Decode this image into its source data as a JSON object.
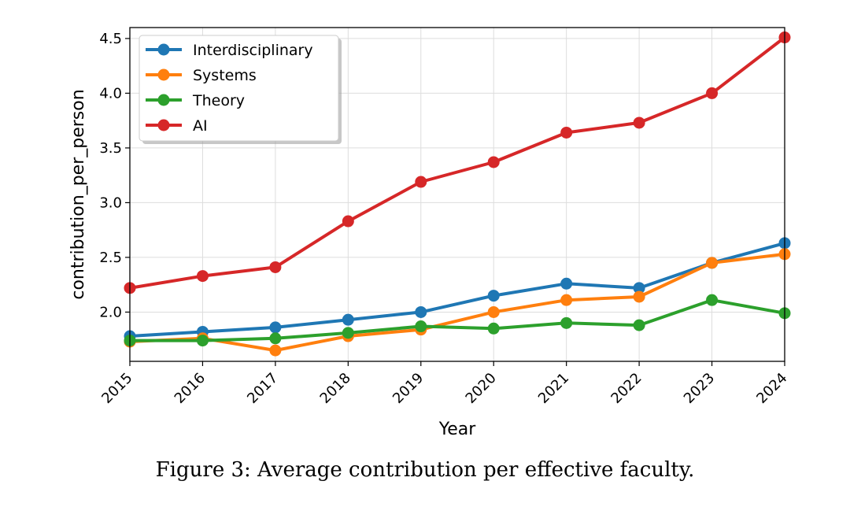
{
  "chart_data": {
    "type": "line",
    "title": "",
    "xlabel": "Year",
    "ylabel": "contribution_per_person",
    "x": [
      "2015",
      "2016",
      "2017",
      "2018",
      "2019",
      "2020",
      "2021",
      "2022",
      "2023",
      "2024"
    ],
    "yticks": [
      "2.0",
      "2.5",
      "3.0",
      "3.5",
      "4.0",
      "4.5"
    ],
    "ylim": [
      1.55,
      4.6
    ],
    "grid": true,
    "legend_position": "top-left",
    "series": [
      {
        "name": "Interdisciplinary",
        "color": "#1f77b4",
        "values": [
          1.78,
          1.82,
          1.86,
          1.93,
          2.0,
          2.15,
          2.26,
          2.22,
          2.45,
          2.63
        ]
      },
      {
        "name": "Systems",
        "color": "#ff7f0e",
        "values": [
          1.73,
          1.76,
          1.65,
          1.78,
          1.84,
          2.0,
          2.11,
          2.14,
          2.45,
          2.53
        ]
      },
      {
        "name": "Theory",
        "color": "#2ca02c",
        "values": [
          1.74,
          1.74,
          1.76,
          1.81,
          1.87,
          1.85,
          1.9,
          1.88,
          2.11,
          1.99
        ]
      },
      {
        "name": "AI",
        "color": "#d62728",
        "values": [
          2.22,
          2.33,
          2.41,
          2.83,
          3.19,
          3.37,
          3.64,
          3.73,
          4.0,
          4.51
        ]
      }
    ]
  },
  "caption": "Figure 3: Average contribution per effective faculty."
}
